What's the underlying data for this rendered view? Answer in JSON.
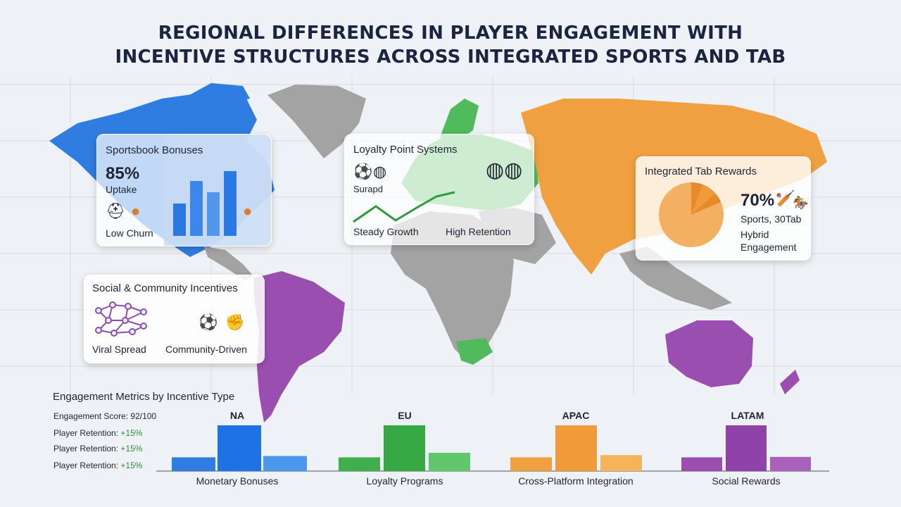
{
  "title": {
    "line1": "REGIONAL DIFFERENCES IN PLAYER ENGAGEMENT WITH",
    "line2": "INCENTIVE STRUCTURES ACROSS INTEGRATED SPORTS AND TAB"
  },
  "colors": {
    "na": "#2f7de0",
    "eu": "#4fbb5c",
    "apac": "#f0a040",
    "latam": "#9a4fb0",
    "land_gray": "#a3a3a3",
    "positive": "#2e8b3a"
  },
  "cards": {
    "sportsbook": {
      "title": "Sportsbook Bonuses",
      "value": "85%",
      "value_label": "Uptake",
      "note": "Low Churn",
      "icons": [
        "football-helmet-icon",
        "basketball-icon",
        "basketball-icon"
      ]
    },
    "loyalty": {
      "title": "Loyalty Point Systems",
      "sub_label": "Surapd",
      "left_label": "Steady Growth",
      "right_label": "High Retention",
      "icons": [
        "soccer-ball-icon",
        "tennis-racket-icon",
        "tennis-rackets-icon"
      ]
    },
    "tab": {
      "title": "Integrated Tab Rewards",
      "value": "70%",
      "value_label": "Sports, 30Tab",
      "note_line1": "Hybrid",
      "note_line2": "Engagement",
      "icons": [
        "cricket-icon",
        "horse-racing-icon"
      ]
    },
    "social": {
      "title": "Social & Community Incentives",
      "left_label": "Viral Spread",
      "right_label": "Community-Driven",
      "icons": [
        "network-icon",
        "soccer-ball-icon",
        "boxing-glove-icon"
      ]
    }
  },
  "metrics": {
    "title": "Engagement Metrics by Incentive Type",
    "score_label": "Engagement Score: 92/100",
    "retention_rows": [
      {
        "label": "Player Retention: ",
        "value": "+15%"
      },
      {
        "label": "Player Retention: ",
        "value": "+15%"
      },
      {
        "label": "Player Retention: ",
        "value": "+15%"
      }
    ]
  },
  "chart_data": {
    "type": "bar",
    "categories": [
      "Monetary Bonuses",
      "Loyalty Programs",
      "Cross-Platform Integration",
      "Social Rewards"
    ],
    "groups": [
      "NA",
      "EU",
      "APAC",
      "LATAM"
    ],
    "series": [
      {
        "values": [
          0.3,
          0.3,
          0.3,
          0.3
        ]
      },
      {
        "values": [
          1.0,
          1.0,
          1.0,
          1.0
        ]
      },
      {
        "values": [
          0.33,
          0.4,
          0.35,
          0.31
        ]
      }
    ],
    "title": "Engagement Metrics by Incentive Type",
    "xlabel": "",
    "ylabel": "",
    "grid": false
  }
}
